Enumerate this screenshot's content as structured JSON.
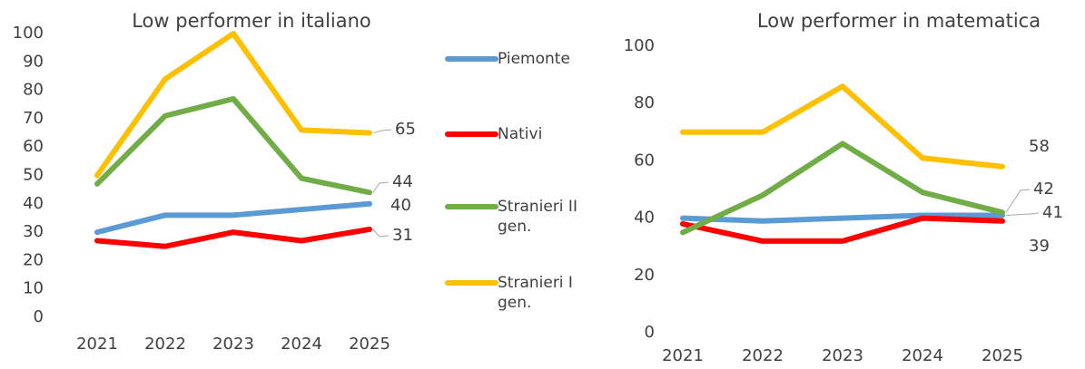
{
  "chart_data": [
    {
      "type": "line",
      "title": "Low performer in italiano",
      "categories": [
        "2021",
        "2022",
        "2023",
        "2024",
        "2025"
      ],
      "ylim": [
        0,
        100
      ],
      "yticks": [
        0,
        10,
        20,
        30,
        40,
        50,
        60,
        70,
        80,
        90,
        100
      ],
      "grid": false,
      "legend": "right",
      "series": [
        {
          "name": "Piemonte",
          "color": "#5b9bd5",
          "values": [
            30,
            36,
            36,
            38,
            40
          ]
        },
        {
          "name": "Nativi",
          "color": "#ff0000",
          "values": [
            27,
            25,
            30,
            27,
            31
          ]
        },
        {
          "name": "Stranieri II gen.",
          "color": "#70ad47",
          "values": [
            47,
            71,
            77,
            49,
            44
          ]
        },
        {
          "name": "Stranieri I gen.",
          "color": "#ffc000",
          "values": [
            50,
            84,
            100,
            66,
            65
          ]
        }
      ]
    },
    {
      "type": "line",
      "title": "Low performer in matematica",
      "categories": [
        "2021",
        "2022",
        "2023",
        "2024",
        "2025"
      ],
      "ylim": [
        0,
        100
      ],
      "yticks": [
        0,
        20,
        40,
        60,
        80,
        100
      ],
      "grid": false,
      "series": [
        {
          "color": "#5b9bd5",
          "values": [
            40,
            39,
            40,
            41,
            41
          ]
        },
        {
          "color": "#ff0000",
          "values": [
            38,
            32,
            32,
            40,
            39
          ]
        },
        {
          "color": "#70ad47",
          "values": [
            35,
            48,
            66,
            49,
            42
          ]
        },
        {
          "color": "#ffc000",
          "values": [
            70,
            70,
            86,
            61,
            58
          ]
        }
      ]
    }
  ]
}
